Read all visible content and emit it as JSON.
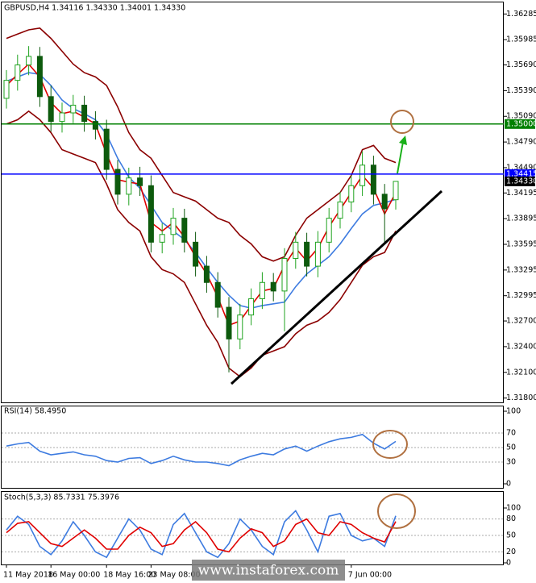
{
  "chart_data": {
    "type": "candlestick",
    "title": "GBPUSD,H4  1.34116 1.34330 1.34001 1.34330",
    "categories": [
      "11 May 2018",
      null,
      null,
      null,
      "16 May 00:00",
      null,
      null,
      null,
      null,
      "18 May 16:00",
      null,
      null,
      null,
      "23 May 08:00",
      null,
      null,
      null,
      null,
      null,
      null,
      null,
      null,
      null,
      null,
      null,
      null,
      null,
      null,
      null,
      null,
      null,
      "7 Jun 00:00",
      null,
      null,
      null,
      null
    ],
    "open": [
      1.353,
      1.3551,
      1.3569,
      1.3579,
      1.3532,
      1.3503,
      1.3513,
      1.3522,
      1.3503,
      1.3494,
      1.3447,
      1.3418,
      1.3437,
      1.3428,
      1.3362,
      1.3371,
      1.339,
      1.3362,
      1.3334,
      1.3315,
      1.3286,
      1.3249,
      1.3277,
      1.3296,
      1.3315,
      1.3305,
      1.3343,
      1.3362,
      1.3334,
      1.3362,
      1.339,
      1.3409,
      1.3428,
      1.3452,
      1.3418,
      1.34116
    ],
    "high": [
      1.3563,
      1.3581,
      1.3591,
      1.359,
      1.3545,
      1.3525,
      1.3534,
      1.3533,
      1.3515,
      1.3505,
      1.3458,
      1.3449,
      1.345,
      1.344,
      1.3384,
      1.3402,
      1.3401,
      1.3374,
      1.3346,
      1.3327,
      1.3298,
      1.329,
      1.3308,
      1.3327,
      1.3326,
      1.3355,
      1.3374,
      1.3373,
      1.3375,
      1.3402,
      1.3421,
      1.344,
      1.3468,
      1.3463,
      1.343,
      1.3433
    ],
    "low": [
      1.3518,
      1.3539,
      1.3557,
      1.352,
      1.3491,
      1.349,
      1.3501,
      1.3491,
      1.3482,
      1.3435,
      1.3406,
      1.3405,
      1.3416,
      1.335,
      1.3349,
      1.3359,
      1.335,
      1.3322,
      1.3303,
      1.3274,
      1.321,
      1.3237,
      1.3265,
      1.3284,
      1.3293,
      1.3258,
      1.3331,
      1.3322,
      1.3321,
      1.335,
      1.3378,
      1.3397,
      1.3416,
      1.3406,
      1.3359,
      1.34001
    ],
    "close": [
      1.3551,
      1.3569,
      1.3579,
      1.3532,
      1.3503,
      1.3513,
      1.3522,
      1.3503,
      1.3494,
      1.3447,
      1.3418,
      1.3437,
      1.3428,
      1.3362,
      1.3371,
      1.339,
      1.3362,
      1.3334,
      1.3315,
      1.3286,
      1.3249,
      1.3277,
      1.3296,
      1.3315,
      1.3305,
      1.3343,
      1.3362,
      1.3334,
      1.3362,
      1.339,
      1.3409,
      1.3428,
      1.3452,
      1.3418,
      1.3401,
      1.3433
    ],
    "up_color": "#1fa31f",
    "down_color": "#0d5a0d",
    "lines": [
      {
        "color": "#8b0000",
        "values": [
          1.36,
          1.3605,
          1.361,
          1.3612,
          1.36,
          1.3585,
          1.357,
          1.356,
          1.3555,
          1.3545,
          1.352,
          1.349,
          1.347,
          1.346,
          1.344,
          1.342,
          1.3415,
          1.341,
          1.34,
          1.339,
          1.3385,
          1.337,
          1.336,
          1.3345,
          1.334,
          1.3345,
          1.337,
          1.339,
          1.34,
          1.341,
          1.342,
          1.344,
          1.347,
          1.3475,
          1.346,
          1.3455
        ]
      },
      {
        "color": "#8b0000",
        "values": [
          1.35,
          1.3505,
          1.3515,
          1.3505,
          1.349,
          1.347,
          1.3465,
          1.346,
          1.3455,
          1.343,
          1.34,
          1.3385,
          1.3375,
          1.3345,
          1.333,
          1.3325,
          1.3315,
          1.329,
          1.3265,
          1.3245,
          1.3215,
          1.3205,
          1.3215,
          1.323,
          1.3235,
          1.324,
          1.3255,
          1.3265,
          1.327,
          1.328,
          1.3295,
          1.3315,
          1.3335,
          1.3345,
          1.335,
          1.3375
        ]
      },
      {
        "color": "#3d7be0",
        "values": [
          1.355,
          1.3555,
          1.356,
          1.3558,
          1.3545,
          1.3528,
          1.3518,
          1.3512,
          1.3505,
          1.3488,
          1.346,
          1.3438,
          1.3425,
          1.3405,
          1.3385,
          1.3375,
          1.3365,
          1.335,
          1.3332,
          1.3315,
          1.33,
          1.3288,
          1.3285,
          1.3288,
          1.329,
          1.3292,
          1.331,
          1.3325,
          1.3335,
          1.3345,
          1.336,
          1.3378,
          1.3395,
          1.3405,
          1.3408,
          1.3412
        ]
      },
      {
        "color": "#e00000",
        "values": [
          1.3545,
          1.3558,
          1.357,
          1.3555,
          1.3525,
          1.3512,
          1.3515,
          1.3508,
          1.35,
          1.3465,
          1.3435,
          1.3432,
          1.343,
          1.3385,
          1.3375,
          1.3385,
          1.3368,
          1.3345,
          1.3325,
          1.3298,
          1.3265,
          1.327,
          1.3288,
          1.3305,
          1.3308,
          1.3335,
          1.3355,
          1.334,
          1.3355,
          1.338,
          1.34,
          1.342,
          1.344,
          1.3425,
          1.3395,
          1.342
        ]
      }
    ],
    "hlines": [
      {
        "value": 1.35,
        "label": "1.35000",
        "color": "#008000"
      },
      {
        "value": 1.34415,
        "label": "1.34415",
        "color": "#0000ff"
      }
    ],
    "price_label": {
      "value": 1.3433,
      "label": "1.34330"
    },
    "ylim": [
      1.3174,
      1.3642
    ],
    "yticks": [
      {
        "value": 1.36285,
        "label": "1.36285"
      },
      {
        "value": 1.35985,
        "label": "1.35985"
      },
      {
        "value": 1.3569,
        "label": "1.35690"
      },
      {
        "value": 1.3539,
        "label": "1.35390"
      },
      {
        "value": 1.3509,
        "label": "1.35090"
      },
      {
        "value": 1.3479,
        "label": "1.34790"
      },
      {
        "value": 1.3449,
        "label": "1.34490"
      },
      {
        "value": 1.34195,
        "label": "1.34195"
      },
      {
        "value": 1.33895,
        "label": "1.33895"
      },
      {
        "value": 1.33595,
        "label": "1.33595"
      },
      {
        "value": 1.33295,
        "label": "1.33295"
      },
      {
        "value": 1.32995,
        "label": "1.32995"
      },
      {
        "value": 1.327,
        "label": "1.32700"
      },
      {
        "value": 1.324,
        "label": "1.32400"
      },
      {
        "value": 1.321,
        "label": "1.32100"
      },
      {
        "value": 1.318,
        "label": "1.31800"
      }
    ],
    "indicators": [
      {
        "title": "RSI(14) 58.4950",
        "ylim": [
          0,
          100
        ],
        "yticks": [
          100,
          70,
          50,
          30,
          0
        ],
        "series": [
          {
            "color": "#3d7be0",
            "values": [
              52,
              55,
              57,
              45,
              40,
              42,
              44,
              40,
              38,
              32,
              30,
              35,
              36,
              28,
              32,
              38,
              33,
              30,
              30,
              28,
              25,
              33,
              38,
              42,
              40,
              48,
              52,
              45,
              52,
              58,
              62,
              64,
              68,
              56,
              48,
              58.495
            ]
          }
        ]
      },
      {
        "title": "Stoch(5,3,3) 85.7331 75.3976",
        "ylim": [
          0,
          100
        ],
        "yticks": [
          100,
          80,
          50,
          20,
          0
        ],
        "series": [
          {
            "color": "#3d7be0",
            "values": [
              60,
              85,
              70,
              30,
              15,
              40,
              75,
              50,
              20,
              10,
              45,
              80,
              60,
              25,
              15,
              70,
              90,
              55,
              20,
              10,
              35,
              80,
              60,
              30,
              15,
              75,
              95,
              60,
              20,
              85,
              90,
              50,
              40,
              45,
              30,
              85.7331
            ]
          },
          {
            "color": "#e00000",
            "values": [
              55,
              72,
              75,
              55,
              35,
              30,
              45,
              60,
              45,
              25,
              25,
              50,
              65,
              55,
              30,
              35,
              60,
              75,
              55,
              25,
              20,
              45,
              62,
              55,
              30,
              40,
              70,
              80,
              55,
              50,
              75,
              70,
              55,
              45,
              38,
              75.3976
            ]
          }
        ]
      }
    ],
    "watermark": "www.instaforex.com"
  }
}
